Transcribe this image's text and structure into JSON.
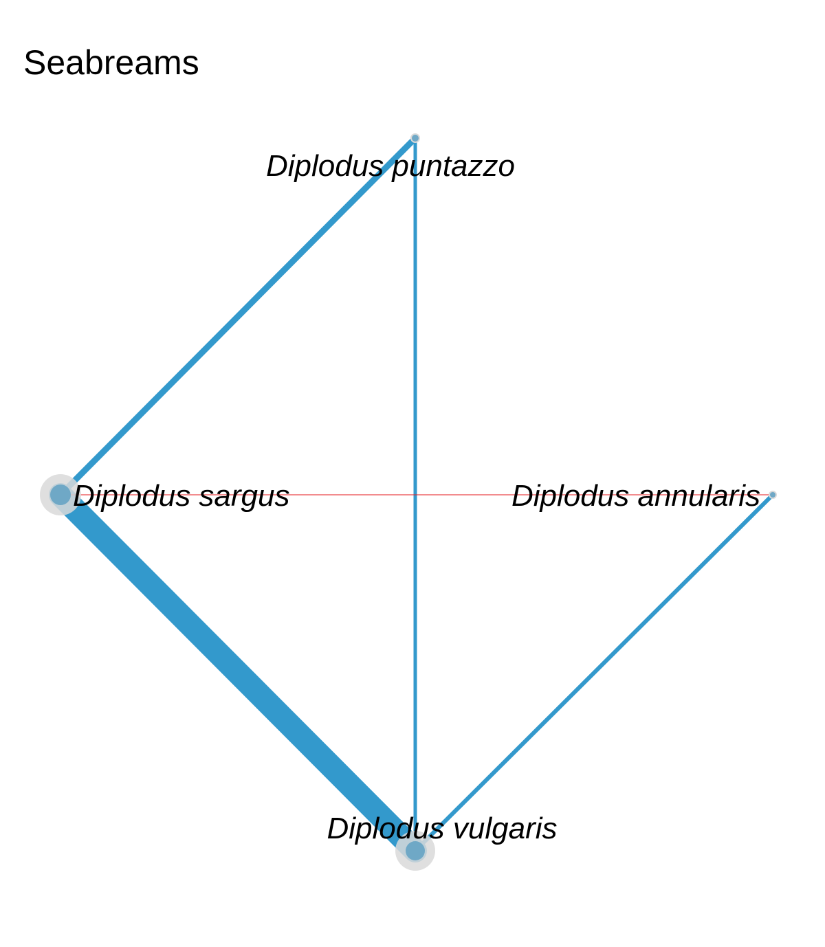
{
  "title": "Seabreams",
  "colors": {
    "edge": "#3399cc",
    "edge_highlight": "#e41a1c",
    "node_fill": "#6fa8c6",
    "node_halo": "#d9d9d9",
    "label": "#000000"
  },
  "nodes": [
    {
      "id": "puntazzo",
      "label": "Diplodus puntazzo"
    },
    {
      "id": "sargus",
      "label": "Diplodus sargus"
    },
    {
      "id": "annularis",
      "label": "Diplodus annularis"
    },
    {
      "id": "vulgaris",
      "label": "Diplodus vulgaris"
    }
  ],
  "edges": [
    {
      "from": "sargus",
      "to": "vulgaris",
      "weight": "strong"
    },
    {
      "from": "sargus",
      "to": "puntazzo",
      "weight": "medium"
    },
    {
      "from": "puntazzo",
      "to": "vulgaris",
      "weight": "light"
    },
    {
      "from": "annularis",
      "to": "vulgaris",
      "weight": "light"
    },
    {
      "from": "sargus",
      "to": "annularis",
      "weight": "highlight"
    }
  ]
}
